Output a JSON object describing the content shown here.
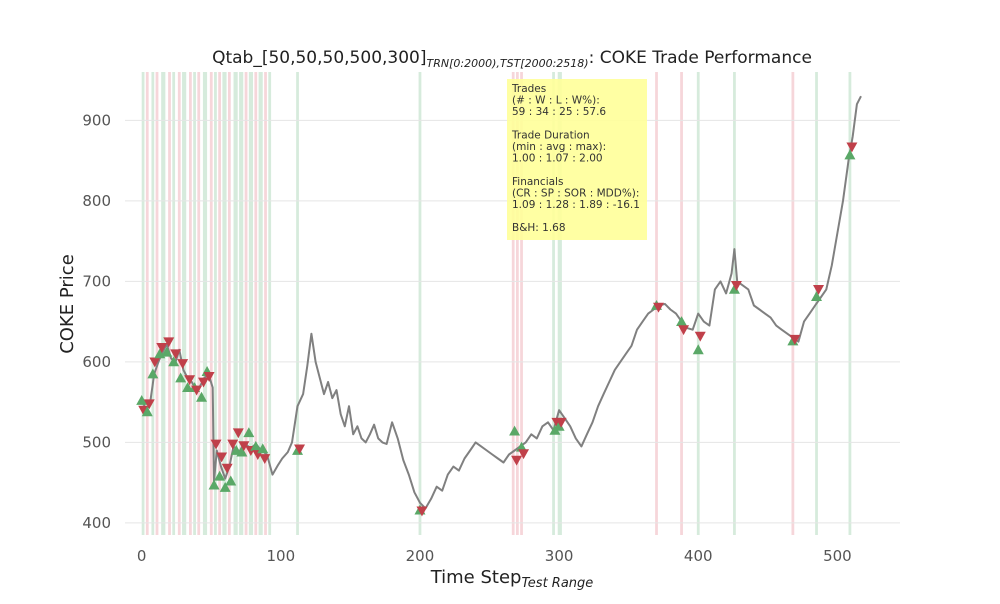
{
  "chart_data": {
    "type": "line",
    "title_main": "Qtab_[50,50,50,500,300]",
    "title_sub": "TRN[0:2000),TST[2000:2518)",
    "title_tail": ": COKE Trade Performance",
    "xlabel_main": "Time Step",
    "xlabel_sub": "Test Range",
    "ylabel": "COKE Price",
    "xlim": [
      -12,
      545
    ],
    "ylim": [
      385,
      960
    ],
    "xticks": [
      0,
      100,
      200,
      300,
      400,
      500
    ],
    "yticks": [
      400,
      500,
      600,
      700,
      800,
      900
    ],
    "grid": true,
    "colors": {
      "price_line": "#808080",
      "buy_marker": "#5aa867",
      "sell_marker": "#c0404a",
      "win_span": "#cfe8d6",
      "loss_span": "#f5cfd3",
      "info_box": "#ffff99",
      "grid": "#e5e5e5"
    },
    "price_series": {
      "name": "COKE",
      "x": [
        0,
        3,
        6,
        9,
        12,
        15,
        18,
        21,
        24,
        27,
        30,
        33,
        36,
        39,
        42,
        45,
        48,
        51,
        52,
        54,
        57,
        60,
        63,
        66,
        70,
        74,
        78,
        82,
        86,
        90,
        94,
        98,
        101,
        105,
        108,
        112,
        116,
        119,
        122,
        125,
        128,
        131,
        134,
        137,
        140,
        143,
        146,
        149,
        152,
        155,
        158,
        161,
        164,
        167,
        170,
        173,
        176,
        180,
        184,
        188,
        192,
        196,
        200,
        204,
        208,
        212,
        216,
        220,
        224,
        228,
        232,
        236,
        240,
        244,
        248,
        252,
        256,
        260,
        264,
        268,
        272,
        276,
        280,
        284,
        288,
        292,
        296,
        300,
        304,
        308,
        312,
        316,
        320,
        324,
        328,
        332,
        336,
        340,
        344,
        348,
        352,
        356,
        360,
        364,
        368,
        372,
        376,
        380,
        384,
        388,
        392,
        396,
        400,
        404,
        408,
        412,
        416,
        420,
        424,
        426,
        428,
        432,
        436,
        440,
        444,
        448,
        452,
        456,
        460,
        464,
        468,
        472,
        476,
        480,
        484,
        488,
        492,
        496,
        500,
        504,
        508,
        511,
        514,
        517
      ],
      "y": [
        555,
        540,
        548,
        585,
        600,
        612,
        622,
        605,
        598,
        615,
        590,
        580,
        575,
        565,
        570,
        580,
        585,
        568,
        452,
        490,
        470,
        455,
        470,
        495,
        488,
        500,
        492,
        498,
        490,
        485,
        460,
        472,
        480,
        488,
        500,
        545,
        560,
        595,
        635,
        600,
        580,
        560,
        575,
        555,
        565,
        535,
        520,
        545,
        510,
        520,
        505,
        500,
        510,
        522,
        505,
        500,
        498,
        525,
        505,
        478,
        460,
        438,
        425,
        418,
        430,
        445,
        440,
        460,
        470,
        465,
        480,
        490,
        500,
        495,
        490,
        485,
        480,
        475,
        485,
        490,
        495,
        500,
        510,
        505,
        520,
        525,
        515,
        540,
        530,
        520,
        505,
        495,
        510,
        525,
        545,
        560,
        575,
        590,
        600,
        610,
        620,
        640,
        650,
        660,
        665,
        670,
        672,
        665,
        660,
        650,
        642,
        640,
        660,
        650,
        645,
        690,
        700,
        685,
        710,
        740,
        700,
        695,
        690,
        670,
        665,
        660,
        655,
        645,
        640,
        635,
        630,
        625,
        650,
        660,
        670,
        680,
        690,
        720,
        760,
        800,
        850,
        880,
        920,
        930
      ]
    },
    "trades": [
      {
        "x": 0,
        "entry": 552,
        "exit": 540
      },
      {
        "x": 4,
        "entry": 538,
        "exit": 548
      },
      {
        "x": 8,
        "entry": 585,
        "exit": 600
      },
      {
        "x": 13,
        "entry": 610,
        "exit": 618
      },
      {
        "x": 18,
        "entry": 612,
        "exit": 625
      },
      {
        "x": 23,
        "entry": 600,
        "exit": 610
      },
      {
        "x": 28,
        "entry": 580,
        "exit": 598
      },
      {
        "x": 33,
        "entry": 568,
        "exit": 578
      },
      {
        "x": 38,
        "entry": 568,
        "exit": 565
      },
      {
        "x": 43,
        "entry": 556,
        "exit": 575
      },
      {
        "x": 47,
        "entry": 588,
        "exit": 582
      },
      {
        "x": 52,
        "entry": 447,
        "exit": 498
      },
      {
        "x": 56,
        "entry": 458,
        "exit": 482
      },
      {
        "x": 60,
        "entry": 444,
        "exit": 468
      },
      {
        "x": 64,
        "entry": 452,
        "exit": 498
      },
      {
        "x": 68,
        "entry": 490,
        "exit": 512
      },
      {
        "x": 72,
        "entry": 488,
        "exit": 496
      },
      {
        "x": 77,
        "entry": 512,
        "exit": 490
      },
      {
        "x": 82,
        "entry": 495,
        "exit": 485
      },
      {
        "x": 87,
        "entry": 492,
        "exit": 480
      },
      {
        "x": 112,
        "entry": 490,
        "exit": 492
      },
      {
        "x": 200,
        "entry": 416,
        "exit": 415
      },
      {
        "x": 268,
        "entry": 514,
        "exit": 478
      },
      {
        "x": 273,
        "entry": 494,
        "exit": 486
      },
      {
        "x": 297,
        "entry": 515,
        "exit": 525
      },
      {
        "x": 300,
        "entry": 520,
        "exit": 525
      },
      {
        "x": 370,
        "entry": 670,
        "exit": 668
      },
      {
        "x": 388,
        "entry": 650,
        "exit": 640
      },
      {
        "x": 400,
        "entry": 615,
        "exit": 632
      },
      {
        "x": 426,
        "entry": 690,
        "exit": 695
      },
      {
        "x": 468,
        "entry": 626,
        "exit": 628
      },
      {
        "x": 485,
        "entry": 681,
        "exit": 690
      },
      {
        "x": 509,
        "entry": 857,
        "exit": 867
      }
    ],
    "spans": [
      {
        "x": 0,
        "w": 2,
        "result": "win"
      },
      {
        "x": 3,
        "w": 2,
        "result": "loss"
      },
      {
        "x": 7,
        "w": 2,
        "result": "win"
      },
      {
        "x": 10,
        "w": 2,
        "result": "loss"
      },
      {
        "x": 14,
        "w": 3,
        "result": "win"
      },
      {
        "x": 19,
        "w": 2,
        "result": "loss"
      },
      {
        "x": 22,
        "w": 2,
        "result": "win"
      },
      {
        "x": 26,
        "w": 2,
        "result": "loss"
      },
      {
        "x": 29,
        "w": 3,
        "result": "win"
      },
      {
        "x": 34,
        "w": 2,
        "result": "loss"
      },
      {
        "x": 37,
        "w": 2,
        "result": "win"
      },
      {
        "x": 40,
        "w": 2,
        "result": "loss"
      },
      {
        "x": 44,
        "w": 3,
        "result": "win"
      },
      {
        "x": 49,
        "w": 2,
        "result": "loss"
      },
      {
        "x": 52,
        "w": 2,
        "result": "win"
      },
      {
        "x": 55,
        "w": 2,
        "result": "loss"
      },
      {
        "x": 58,
        "w": 3,
        "result": "win"
      },
      {
        "x": 62,
        "w": 2,
        "result": "loss"
      },
      {
        "x": 66,
        "w": 3,
        "result": "win"
      },
      {
        "x": 70,
        "w": 3,
        "result": "win"
      },
      {
        "x": 74,
        "w": 2,
        "result": "loss"
      },
      {
        "x": 77,
        "w": 3,
        "result": "win"
      },
      {
        "x": 81,
        "w": 2,
        "result": "loss"
      },
      {
        "x": 84,
        "w": 3,
        "result": "win"
      },
      {
        "x": 88,
        "w": 2,
        "result": "loss"
      },
      {
        "x": 91,
        "w": 2,
        "result": "win"
      },
      {
        "x": 111,
        "w": 2,
        "result": "win"
      },
      {
        "x": 199,
        "w": 2,
        "result": "win"
      },
      {
        "x": 266,
        "w": 2,
        "result": "loss"
      },
      {
        "x": 269,
        "w": 2,
        "result": "loss"
      },
      {
        "x": 272,
        "w": 2,
        "result": "loss"
      },
      {
        "x": 295,
        "w": 2,
        "result": "win"
      },
      {
        "x": 299,
        "w": 3,
        "result": "win"
      },
      {
        "x": 369,
        "w": 2,
        "result": "loss"
      },
      {
        "x": 387,
        "w": 2,
        "result": "loss"
      },
      {
        "x": 399,
        "w": 2,
        "result": "win"
      },
      {
        "x": 425,
        "w": 2,
        "result": "win"
      },
      {
        "x": 467,
        "w": 2,
        "result": "loss"
      },
      {
        "x": 484,
        "w": 2,
        "result": "win"
      },
      {
        "x": 508,
        "w": 2,
        "result": "win"
      }
    ],
    "info_box": {
      "lines": [
        "Trades",
        "(# : W : L : W%):",
        "59 : 34 : 25 : 57.6",
        "",
        "Trade Duration",
        "(min : avg : max):",
        "1.00 : 1.07 : 2.00",
        "",
        "Financials",
        "(CR : SP : SOR : MDD%):",
        "1.09 : 1.28 : 1.89 : -16.1",
        "",
        "B&H: 1.68"
      ]
    }
  }
}
